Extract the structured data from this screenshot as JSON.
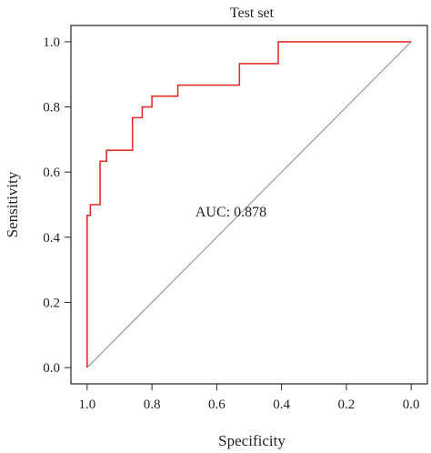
{
  "chart_data": {
    "type": "line",
    "title": "Test set",
    "xlabel": "Specificity",
    "ylabel": "Sensitivity",
    "xlim": [
      1.05,
      -0.05
    ],
    "ylim": [
      -0.05,
      1.05
    ],
    "x_reversed": true,
    "xticks": [
      1.0,
      0.8,
      0.6,
      0.4,
      0.2,
      0.0
    ],
    "xtick_labels": [
      "1.0",
      "0.8",
      "0.6",
      "0.4",
      "0.2",
      "0.0"
    ],
    "yticks": [
      0.0,
      0.2,
      0.4,
      0.6,
      0.8,
      1.0
    ],
    "ytick_labels": [
      "0.0",
      "0.2",
      "0.4",
      "0.6",
      "0.8",
      "1.0"
    ],
    "grid": false,
    "series": [
      {
        "color": "#e0312f",
        "x": [
          1.0,
          1.0,
          0.99,
          0.99,
          0.96,
          0.96,
          0.94,
          0.94,
          0.92,
          0.92,
          0.86,
          0.86,
          0.83,
          0.83,
          0.8,
          0.8,
          0.72,
          0.72,
          0.53,
          0.53,
          0.41,
          0.41,
          0.0
        ],
        "y": [
          0.0,
          0.467,
          0.467,
          0.5,
          0.5,
          0.633,
          0.633,
          0.667,
          0.667,
          0.667,
          0.667,
          0.767,
          0.767,
          0.8,
          0.8,
          0.833,
          0.833,
          0.867,
          0.867,
          0.933,
          0.933,
          1.0,
          1.0
        ]
      }
    ],
    "reference_line": {
      "x": [
        1.0,
        0.0
      ],
      "y": [
        0.0,
        1.0
      ],
      "color": "#888888"
    },
    "annotations": [
      {
        "text": "AUC: 0.878",
        "x": 0.5,
        "y": 0.48,
        "color": "#e0312f"
      }
    ]
  }
}
